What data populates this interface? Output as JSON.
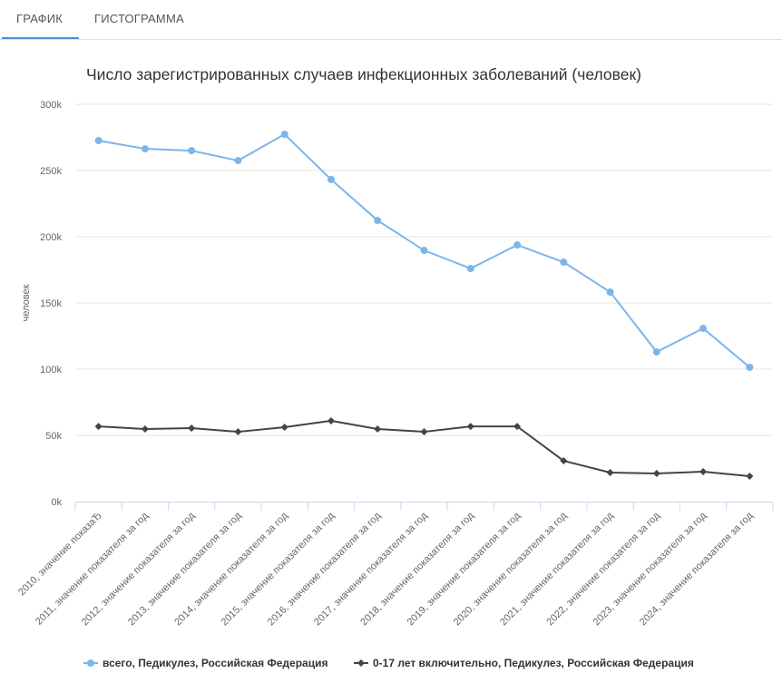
{
  "tabs": [
    {
      "label": "ГРАФИК",
      "active": true
    },
    {
      "label": "ГИСТОГРАММА",
      "active": false
    }
  ],
  "chart_data": {
    "type": "line",
    "title": "Число зарегистрированных случаев инфекционных заболеваний (человек)",
    "xlabel": "",
    "ylabel": "человек",
    "ylim": [
      0,
      300000
    ],
    "yticks": [
      "0k",
      "50k",
      "100k",
      "150k",
      "200k",
      "250k",
      "300k"
    ],
    "grid": true,
    "legend_position": "bottom",
    "categories": [
      "2010, значение показаЂ",
      "2011, значение показателя за год",
      "2012, значение показателя за год",
      "2013, значение показателя за год",
      "2014, значение показателя за год",
      "2015, значение показателя за год",
      "2016, значение показателя за год",
      "2017, значение показателя за год",
      "2018, значение показателя за год",
      "2019, значение показателя за год",
      "2020, значение показателя за год",
      "2021, значение показателя за год",
      "2022, значение показателя за год",
      "2023, значение показателя за год",
      "2024, значение показателя за год"
    ],
    "series": [
      {
        "name": "всего, Педикулез, Российская Федерация",
        "color": "#7cb5ec",
        "marker": "circle",
        "values": [
          272600,
          266400,
          265000,
          257500,
          277400,
          243200,
          212300,
          189700,
          176000,
          193800,
          180800,
          158200,
          113000,
          130800,
          101400
        ]
      },
      {
        "name": "0-17 лет включительно, Педикулез, Российская Федерация",
        "color": "#434348",
        "marker": "diamond",
        "values": [
          56800,
          54800,
          55500,
          52700,
          56200,
          61000,
          54800,
          52700,
          56800,
          56800,
          30800,
          21900,
          21200,
          22600,
          19200
        ]
      }
    ]
  }
}
